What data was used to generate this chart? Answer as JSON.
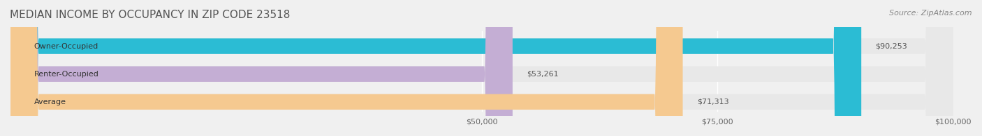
{
  "title": "MEDIAN INCOME BY OCCUPANCY IN ZIP CODE 23518",
  "source_text": "Source: ZipAtlas.com",
  "categories": [
    "Owner-Occupied",
    "Renter-Occupied",
    "Average"
  ],
  "values": [
    90253,
    53261,
    71313
  ],
  "labels": [
    "$90,253",
    "$53,261",
    "$71,313"
  ],
  "bar_colors": [
    "#2bbcd4",
    "#c4aed4",
    "#f5c990"
  ],
  "bar_edge_colors": [
    "#2bbcd4",
    "#c4aed4",
    "#f5c990"
  ],
  "xlim": [
    0,
    100000
  ],
  "xticks": [
    50000,
    75000,
    100000
  ],
  "xticklabels": [
    "$50,000",
    "$75,000",
    "$100,000"
  ],
  "background_color": "#f0f0f0",
  "bar_bg_color": "#e8e8e8",
  "title_fontsize": 11,
  "source_fontsize": 8,
  "label_fontsize": 8,
  "category_fontsize": 8,
  "tick_fontsize": 8
}
